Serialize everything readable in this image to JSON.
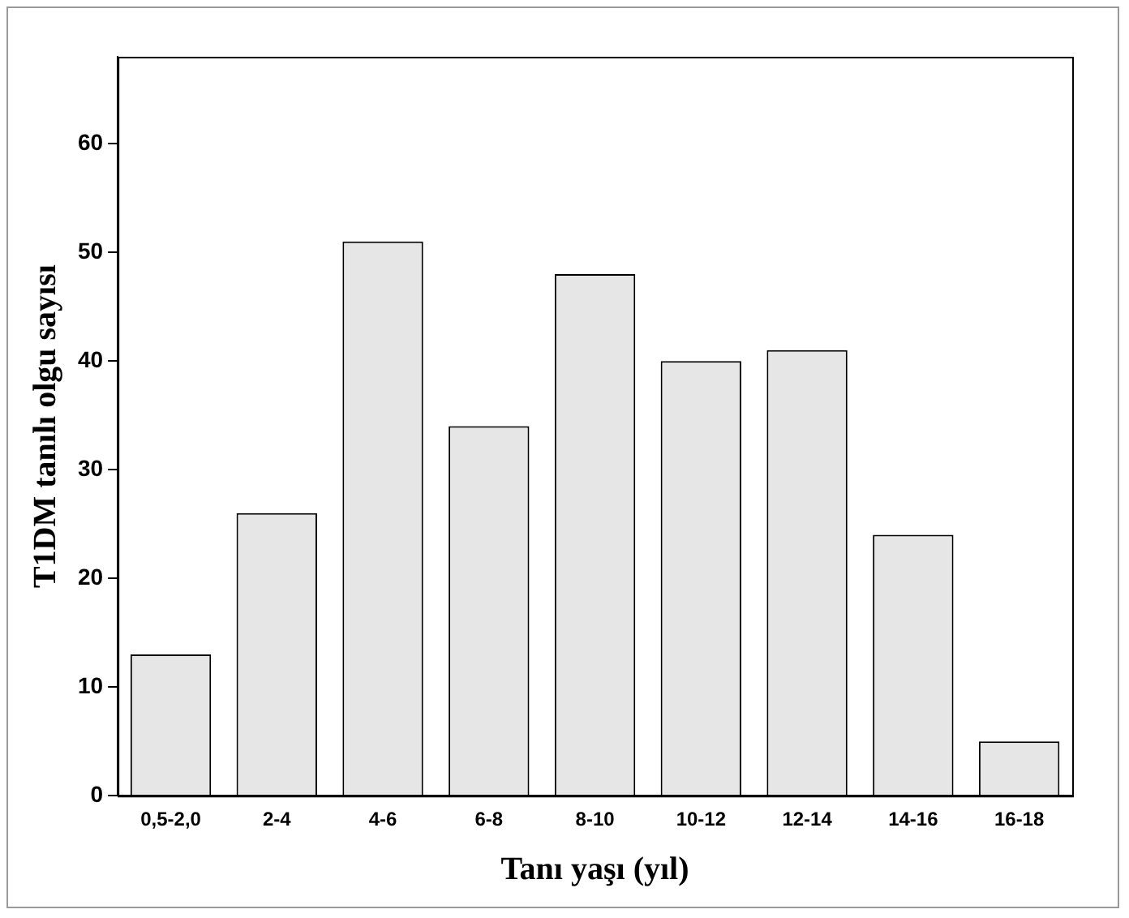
{
  "chart_data": {
    "type": "bar",
    "xlabel": "Tanı yaşı (yıl)",
    "ylabel": "T1DM tanılı olgu sayısı",
    "categories": [
      "0,5-2,0",
      "2-4",
      "4-6",
      "6-8",
      "8-10",
      "10-12",
      "12-14",
      "14-16",
      "16-18"
    ],
    "values": [
      13,
      26,
      51,
      34,
      48,
      40,
      41,
      24,
      5
    ],
    "color": "#e6e6e6",
    "ylim": [
      0,
      68
    ],
    "yticks": [
      0,
      10,
      20,
      30,
      40,
      50,
      60
    ],
    "grid": false,
    "legend": false
  }
}
